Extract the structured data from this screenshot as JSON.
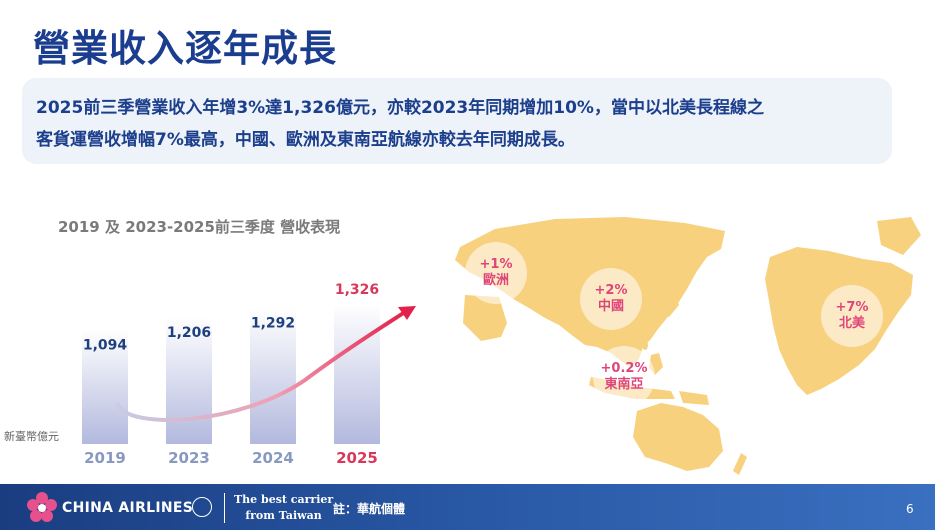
{
  "title": "營業收入逐年成長",
  "summary": {
    "line1": "2025前三季營業收入年增3%達1,326億元，亦較2023年同期增加10%，當中以北美長程線之",
    "line2": "客貨運營收增幅7%最高，中國、歐洲及東南亞航線亦較去年同期成長。"
  },
  "chart_title": "2019 及 2023-2025前三季度 營收表現",
  "chart_data": {
    "type": "bar",
    "title": "2019 及 2023-2025前三季度 營收表現",
    "categories": [
      "2019",
      "2023",
      "2024",
      "2025"
    ],
    "values": [
      1094,
      1206,
      1292,
      1326
    ],
    "value_labels": [
      "1,094",
      "1,206",
      "1,292",
      "1,326"
    ],
    "ylabel": "新臺幣億元",
    "highlight_category": "2025",
    "colors": {
      "bar": "#b9bfe0",
      "label": "#1e3f7e",
      "highlight": "#d8395b",
      "axis": "#8899c0"
    }
  },
  "regions": [
    {
      "name": "歐洲",
      "growth": "+1%"
    },
    {
      "name": "中國",
      "growth": "+2%"
    },
    {
      "name": "東南亞",
      "growth": "+0.2%"
    },
    {
      "name": "北美",
      "growth": "+7%"
    }
  ],
  "footer": {
    "brand": "CHINA AIRLINES",
    "tagline_line1": "The best carrier",
    "tagline_line2": "from Taiwan",
    "note": "註：華航個體",
    "page_number": "6"
  },
  "colors": {
    "title": "#1a3d8f",
    "map_land": "#f7d17e",
    "region_text": "#e0457a",
    "footer": "#1a3d80"
  }
}
